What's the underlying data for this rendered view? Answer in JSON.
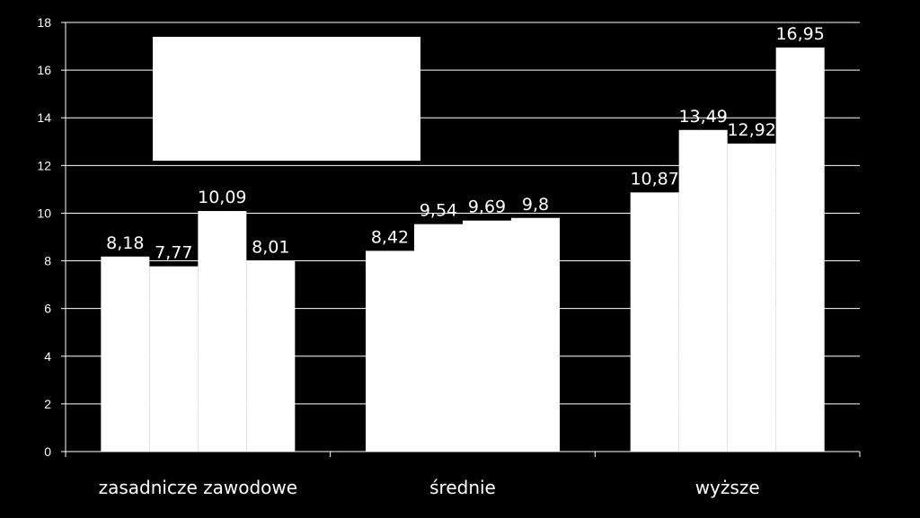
{
  "chart_data": {
    "type": "bar",
    "categories": [
      "zasadnicze zawodowe",
      "średnie",
      "wyższe"
    ],
    "series": [
      {
        "values": [
          8.18,
          8.42,
          10.87
        ]
      },
      {
        "values": [
          7.77,
          9.54,
          13.49
        ]
      },
      {
        "values": [
          10.09,
          9.69,
          12.92
        ]
      },
      {
        "values": [
          8.01,
          9.8,
          16.95
        ]
      }
    ],
    "data_labels": [
      [
        "8,18",
        "7,77",
        "10,09",
        "8,01"
      ],
      [
        "8,42",
        "9,54",
        "9,69",
        "9,8"
      ],
      [
        "10,87",
        "13,49",
        "12,92",
        "16,95"
      ]
    ],
    "ylim": [
      0,
      18
    ],
    "yticks": [
      "0",
      "2",
      "4",
      "6",
      "8",
      "10",
      "12",
      "14",
      "16",
      "18"
    ],
    "grid": true,
    "bar_color": "#ffffff",
    "background_color": "#000000",
    "legend": "top-left"
  }
}
